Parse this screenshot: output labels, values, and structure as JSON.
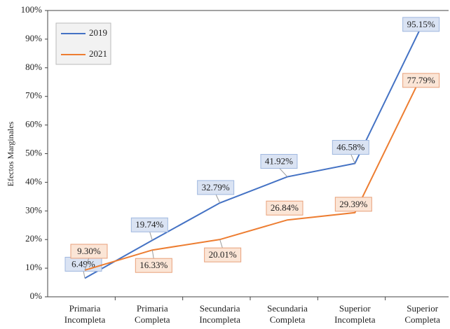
{
  "chart_data": {
    "type": "line",
    "y_label": "Efectos Marginales",
    "categories": [
      "Primaria Incompleta",
      "Primaria Completa",
      "Secundaria Incompleta",
      "Secundaria Completa",
      "Superior Incompleta",
      "Superior Completa"
    ],
    "series": [
      {
        "name": "2019",
        "color": "#4472c4",
        "label_fill": "#dae3f3",
        "values": [
          6.49,
          19.74,
          32.79,
          41.92,
          46.58,
          95.15
        ],
        "value_labels": [
          "6.49%",
          "19.74%",
          "32.79%",
          "41.92%",
          "46.58%",
          "95.15%"
        ]
      },
      {
        "name": "2021",
        "color": "#ed7d31",
        "label_fill": "#fbe5d6",
        "values": [
          9.3,
          16.33,
          20.01,
          26.84,
          29.39,
          77.79
        ],
        "value_labels": [
          "9.30%",
          "16.33%",
          "20.01%",
          "26.84%",
          "29.39%",
          "77.79%"
        ]
      }
    ],
    "ylim": [
      0,
      100
    ],
    "yticks": [
      {
        "value": 0,
        "label": "0%"
      },
      {
        "value": 10,
        "label": "10%"
      },
      {
        "value": 20,
        "label": "20%"
      },
      {
        "value": 30,
        "label": "30%"
      },
      {
        "value": 40,
        "label": "40%"
      },
      {
        "value": 50,
        "label": "50%"
      },
      {
        "value": 60,
        "label": "60%"
      },
      {
        "value": 70,
        "label": "70%"
      },
      {
        "value": 80,
        "label": "80%"
      },
      {
        "value": 90,
        "label": "90%"
      },
      {
        "value": 100,
        "label": "100%"
      }
    ],
    "legend": "top-left"
  }
}
